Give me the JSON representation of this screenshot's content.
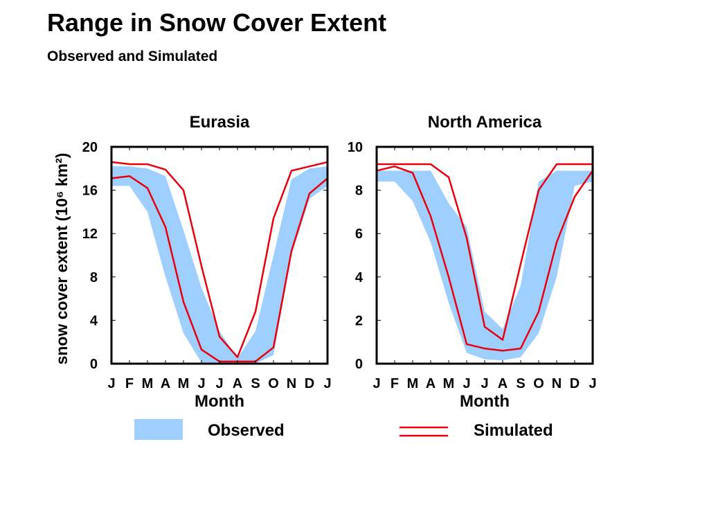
{
  "header": {
    "title": "Range in Snow Cover Extent",
    "subtitle": "Observed and Simulated"
  },
  "colors": {
    "observed": "#9fcfff",
    "simulated": "#e8000b",
    "frame": "#000000"
  },
  "legend": {
    "observed_label": "Observed",
    "simulated_label": "Simulated",
    "placement": "bottom"
  },
  "chart_data": [
    {
      "type": "area",
      "title": "Eurasia",
      "xlabel": "Month",
      "ylabel": "snow cover extent (10⁶ km²)",
      "categories": [
        "J",
        "F",
        "M",
        "A",
        "M",
        "J",
        "J",
        "A",
        "S",
        "O",
        "N",
        "D",
        "J"
      ],
      "ylim": [
        0,
        20
      ],
      "yticks": [
        0,
        4,
        8,
        12,
        16,
        20
      ],
      "observed_range": {
        "max": [
          18.2,
          18.2,
          18.0,
          17.3,
          12.3,
          7.0,
          3.0,
          0.5,
          3.0,
          10.0,
          17.0,
          18.0,
          18.2
        ],
        "min": [
          16.4,
          16.4,
          14.0,
          8.0,
          2.8,
          0.1,
          0.0,
          0.0,
          0.0,
          0.8,
          10.0,
          15.2,
          16.4
        ]
      },
      "simulated_range": {
        "max": [
          18.6,
          18.4,
          18.4,
          17.9,
          16.0,
          9.0,
          2.5,
          0.6,
          4.8,
          13.4,
          17.8,
          18.2,
          18.6
        ],
        "min": [
          17.1,
          17.3,
          16.2,
          12.6,
          5.7,
          1.3,
          0.2,
          0.2,
          0.2,
          1.5,
          10.4,
          15.7,
          17.1
        ]
      }
    },
    {
      "type": "area",
      "title": "North America",
      "xlabel": "Month",
      "ylabel": "",
      "categories": [
        "J",
        "F",
        "M",
        "A",
        "M",
        "J",
        "J",
        "A",
        "S",
        "O",
        "N",
        "D",
        "J"
      ],
      "ylim": [
        0,
        10
      ],
      "yticks": [
        0,
        2,
        4,
        6,
        8,
        10
      ],
      "observed_range": {
        "max": [
          8.9,
          8.9,
          8.9,
          8.9,
          7.4,
          6.3,
          2.4,
          1.6,
          3.6,
          8.4,
          8.9,
          8.9,
          8.9
        ],
        "min": [
          8.4,
          8.4,
          7.5,
          5.6,
          2.8,
          0.5,
          0.2,
          0.15,
          0.3,
          1.4,
          4.0,
          8.2,
          8.4
        ]
      },
      "simulated_range": {
        "max": [
          9.2,
          9.2,
          9.2,
          9.2,
          8.6,
          5.8,
          1.7,
          1.1,
          4.6,
          8.0,
          9.2,
          9.2,
          9.2
        ],
        "min": [
          8.9,
          9.1,
          8.8,
          6.8,
          4.0,
          0.9,
          0.7,
          0.6,
          0.7,
          2.4,
          5.6,
          7.7,
          8.9
        ]
      }
    }
  ]
}
